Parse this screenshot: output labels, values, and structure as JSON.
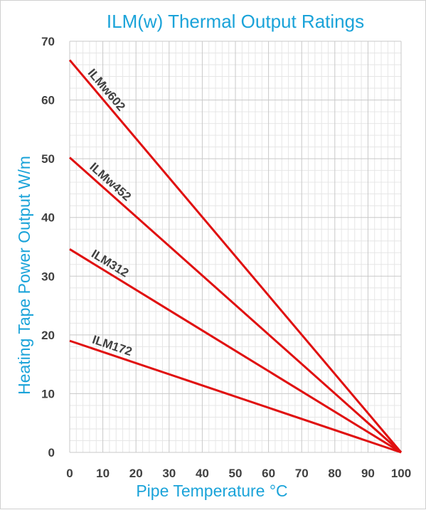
{
  "chart_data": {
    "type": "line",
    "title": "ILM(w) Thermal Output Ratings",
    "xlabel": "Pipe Temperature °C",
    "ylabel": "Heating Tape Power Output W/m",
    "xlim": [
      0,
      100
    ],
    "ylim": [
      0,
      70
    ],
    "x_ticks": [
      0,
      10,
      20,
      30,
      40,
      50,
      60,
      70,
      80,
      90,
      100
    ],
    "y_ticks": [
      0,
      10,
      20,
      30,
      40,
      50,
      60,
      70
    ],
    "grid": true,
    "minor_grid": true,
    "line_color": "#e01010",
    "series": [
      {
        "name": "ILMw602",
        "x": [
          0,
          100
        ],
        "y": [
          66.8,
          0
        ]
      },
      {
        "name": "ILMw452",
        "x": [
          0,
          100
        ],
        "y": [
          50.2,
          0
        ]
      },
      {
        "name": "ILM312",
        "x": [
          0,
          100
        ],
        "y": [
          34.6,
          0
        ]
      },
      {
        "name": "ILM172",
        "x": [
          0,
          100
        ],
        "y": [
          19.0,
          0
        ]
      }
    ]
  }
}
